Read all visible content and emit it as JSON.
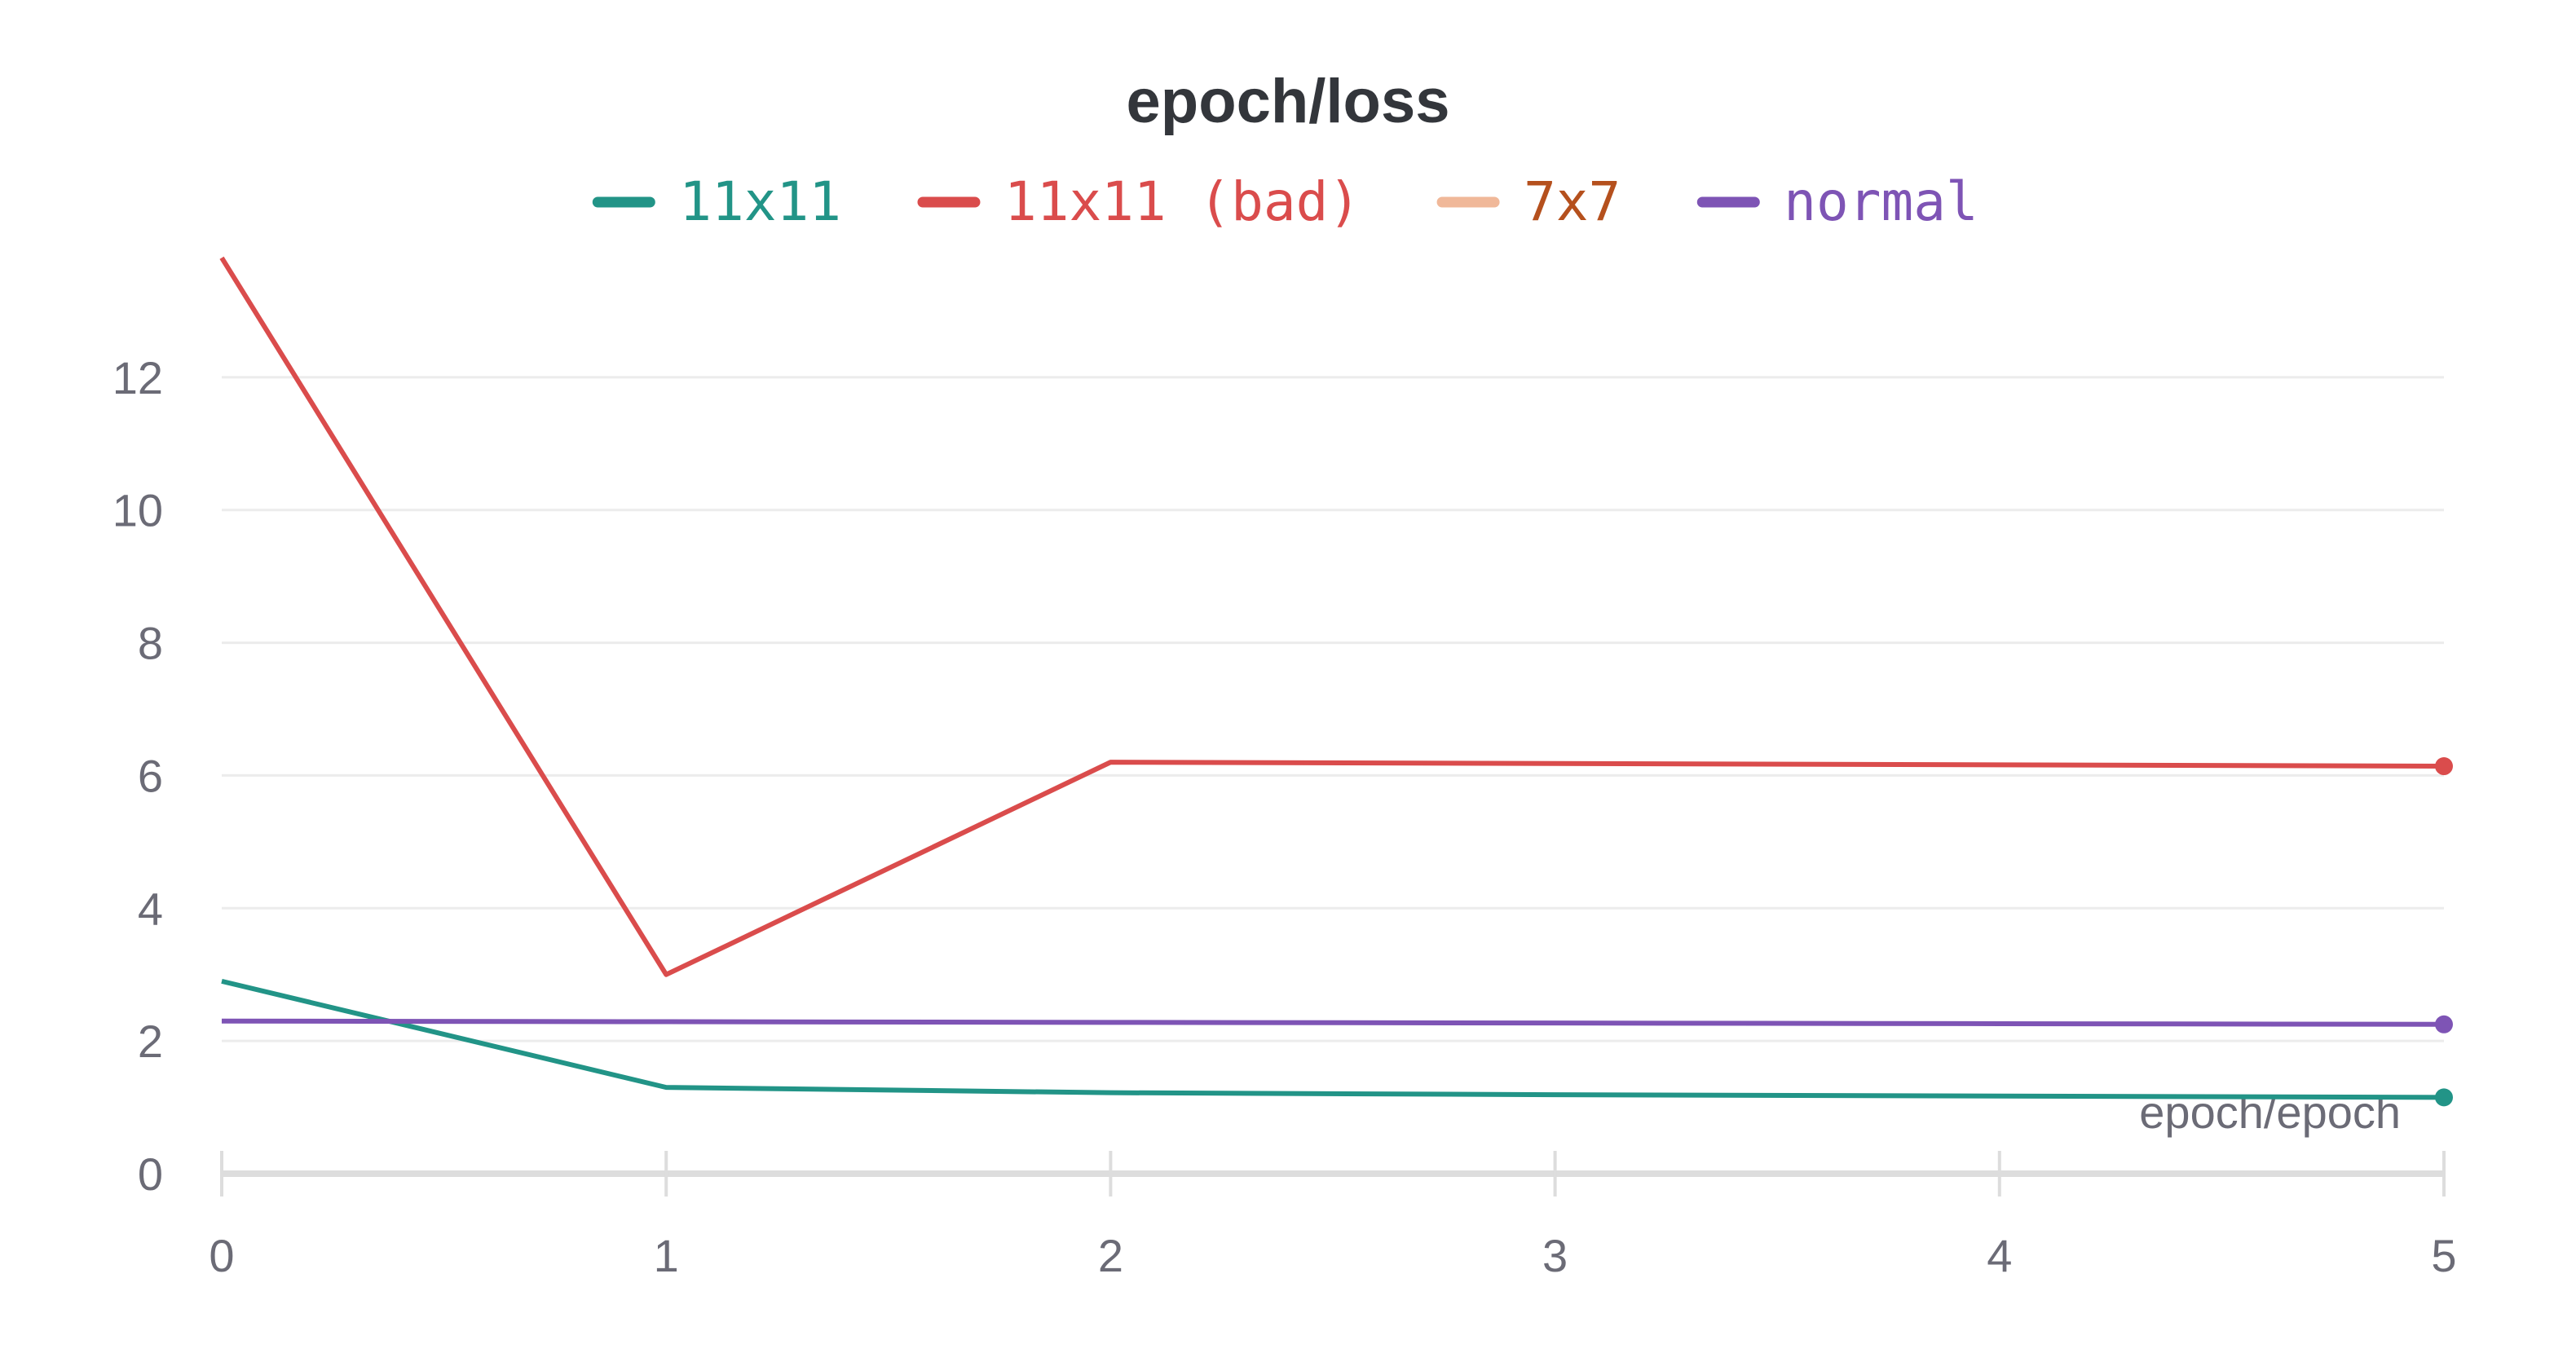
{
  "chart_data": {
    "type": "line",
    "title": "epoch/loss",
    "xlabel": "epoch/epoch",
    "ylabel": "",
    "x": [
      0,
      1,
      2,
      3,
      4,
      5
    ],
    "xlim": [
      0,
      5
    ],
    "ylim": [
      0,
      14
    ],
    "xticks": [
      "0",
      "1",
      "2",
      "3",
      "4",
      "5"
    ],
    "yticks": [
      "0",
      "2",
      "4",
      "6",
      "8",
      "10",
      "12"
    ],
    "grid": true,
    "legend_position": "top-center",
    "series": [
      {
        "name": "11x11",
        "color": "#229487",
        "x": [
          0,
          1,
          2,
          3,
          4,
          5
        ],
        "values": [
          2.9,
          1.3,
          1.22,
          1.19,
          1.17,
          1.15
        ],
        "end_marker": true
      },
      {
        "name": "11x11 (bad)",
        "color": "#da4c4c",
        "x": [
          0,
          1,
          2,
          3,
          4,
          5
        ],
        "values": [
          13.8,
          3.0,
          6.2,
          6.18,
          6.16,
          6.14
        ],
        "end_marker": true
      },
      {
        "name": "7x7",
        "color": "#f0b899",
        "legend_text_color": "#b5501d",
        "x": [],
        "values": [],
        "end_marker": false
      },
      {
        "name": "normal",
        "color": "#7e54b5",
        "x": [
          0,
          1,
          2,
          3,
          4,
          5
        ],
        "values": [
          2.3,
          2.29,
          2.28,
          2.27,
          2.26,
          2.25
        ],
        "end_marker": true
      }
    ]
  }
}
